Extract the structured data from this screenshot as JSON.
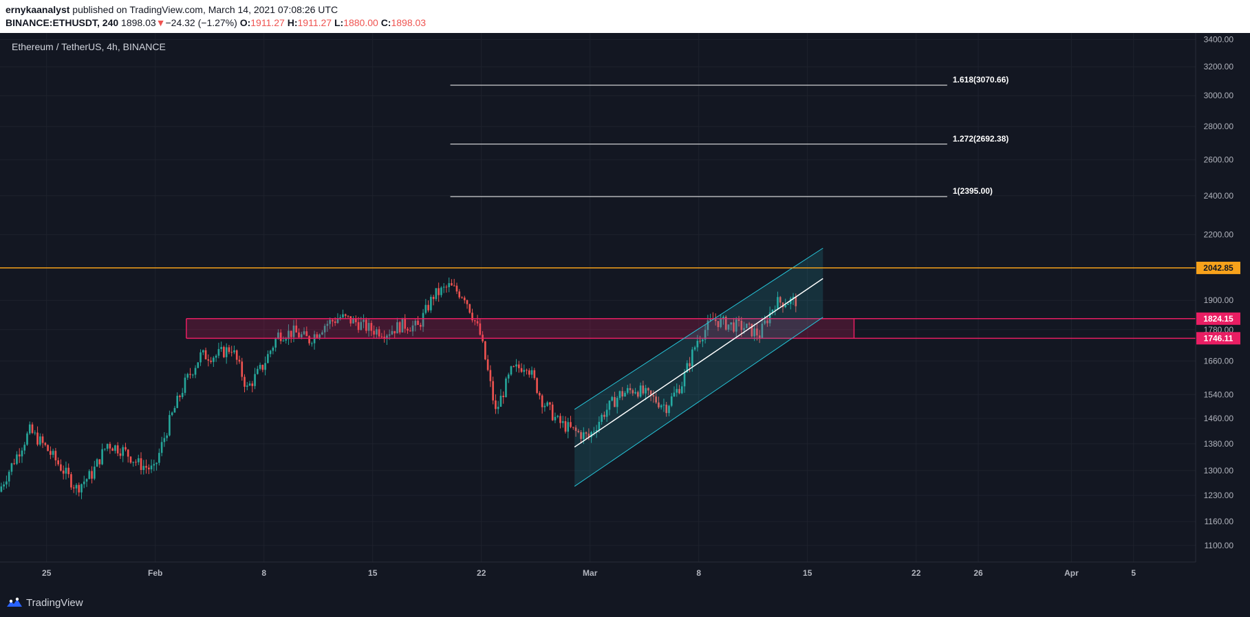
{
  "header": {
    "author": "ernykaanalyst",
    "published_text": "published on TradingView.com, March 14, 2021 07:08:26 UTC",
    "symbol": "BINANCE:ETHUSDT, 240",
    "price": "1898.03",
    "change_arrow": "▼",
    "change": "−24.32 (−1.27%)",
    "o_label": "O:",
    "o_value": "1911.27",
    "h_label": "H:",
    "h_value": "1911.27",
    "l_label": "L:",
    "l_value": "1880.00",
    "c_label": "C:",
    "c_value": "1898.03"
  },
  "footer": {
    "brand": "TradingView",
    "brand_icon": "tradingview-logo-icon"
  },
  "colors": {
    "background": "#131722",
    "grid": "#1e222d",
    "axis_text": "#b2b5be",
    "up": "#26a69a",
    "down": "#ef5350",
    "resistance_line": "#f7a21b",
    "zone": "#e91e63",
    "channel": "#26c6da",
    "fib_line": "#ffffff"
  },
  "chart_data": {
    "type": "candlestick",
    "title": "Ethereum / TetherUS, 4h, BINANCE",
    "y_scale": "log",
    "ylim": [
      1060,
      3450
    ],
    "xlim": [
      "2021-01-22",
      "2021-04-09"
    ],
    "y_ticks": [
      1100,
      1160,
      1230,
      1300,
      1380,
      1460,
      1540,
      1660,
      1780,
      1900,
      2200,
      2400,
      2600,
      2800,
      3000,
      3200,
      3400
    ],
    "x_ticks": [
      {
        "date": "2021-01-25",
        "label": "25"
      },
      {
        "date": "2021-02-01",
        "label": "Feb"
      },
      {
        "date": "2021-02-08",
        "label": "8"
      },
      {
        "date": "2021-02-15",
        "label": "15"
      },
      {
        "date": "2021-02-22",
        "label": "22"
      },
      {
        "date": "2021-03-01",
        "label": "Mar"
      },
      {
        "date": "2021-03-08",
        "label": "8"
      },
      {
        "date": "2021-03-15",
        "label": "15"
      },
      {
        "date": "2021-03-22",
        "label": "22"
      },
      {
        "date": "2021-03-26",
        "label": "26"
      },
      {
        "date": "2021-04-01",
        "label": "Apr"
      },
      {
        "date": "2021-04-05",
        "label": "5"
      }
    ],
    "price_path": [
      {
        "date": "2021-01-22",
        "price": 1240
      },
      {
        "date": "2021-01-23",
        "price": 1330
      },
      {
        "date": "2021-01-24",
        "price": 1420
      },
      {
        "date": "2021-01-25",
        "price": 1370
      },
      {
        "date": "2021-01-26",
        "price": 1310
      },
      {
        "date": "2021-01-27",
        "price": 1250
      },
      {
        "date": "2021-01-28",
        "price": 1290
      },
      {
        "date": "2021-01-29",
        "price": 1380
      },
      {
        "date": "2021-01-30",
        "price": 1360
      },
      {
        "date": "2021-01-31",
        "price": 1320
      },
      {
        "date": "2021-02-01",
        "price": 1300
      },
      {
        "date": "2021-02-02",
        "price": 1450
      },
      {
        "date": "2021-02-03",
        "price": 1580
      },
      {
        "date": "2021-02-04",
        "price": 1680
      },
      {
        "date": "2021-02-05",
        "price": 1680
      },
      {
        "date": "2021-02-06",
        "price": 1710
      },
      {
        "date": "2021-02-07",
        "price": 1560
      },
      {
        "date": "2021-02-08",
        "price": 1640
      },
      {
        "date": "2021-02-09",
        "price": 1760
      },
      {
        "date": "2021-02-10",
        "price": 1770
      },
      {
        "date": "2021-02-11",
        "price": 1740
      },
      {
        "date": "2021-02-12",
        "price": 1800
      },
      {
        "date": "2021-02-13",
        "price": 1830
      },
      {
        "date": "2021-02-14",
        "price": 1810
      },
      {
        "date": "2021-02-15",
        "price": 1780
      },
      {
        "date": "2021-02-16",
        "price": 1770
      },
      {
        "date": "2021-02-17",
        "price": 1800
      },
      {
        "date": "2021-02-18",
        "price": 1790
      },
      {
        "date": "2021-02-19",
        "price": 1920
      },
      {
        "date": "2021-02-20",
        "price": 1960
      },
      {
        "date": "2021-02-21",
        "price": 1920
      },
      {
        "date": "2021-02-22",
        "price": 1760
      },
      {
        "date": "2021-02-23",
        "price": 1480
      },
      {
        "date": "2021-02-24",
        "price": 1620
      },
      {
        "date": "2021-02-25",
        "price": 1650
      },
      {
        "date": "2021-02-26",
        "price": 1520
      },
      {
        "date": "2021-02-27",
        "price": 1450
      },
      {
        "date": "2021-02-28",
        "price": 1420
      },
      {
        "date": "2021-03-01",
        "price": 1400
      },
      {
        "date": "2021-03-02",
        "price": 1480
      },
      {
        "date": "2021-03-03",
        "price": 1540
      },
      {
        "date": "2021-03-04",
        "price": 1560
      },
      {
        "date": "2021-03-05",
        "price": 1530
      },
      {
        "date": "2021-03-06",
        "price": 1500
      },
      {
        "date": "2021-03-07",
        "price": 1580
      },
      {
        "date": "2021-03-08",
        "price": 1740
      },
      {
        "date": "2021-03-09",
        "price": 1820
      },
      {
        "date": "2021-03-10",
        "price": 1800
      },
      {
        "date": "2021-03-11",
        "price": 1790
      },
      {
        "date": "2021-03-12",
        "price": 1760
      },
      {
        "date": "2021-03-13",
        "price": 1890
      },
      {
        "date": "2021-03-14",
        "price": 1898.03
      }
    ],
    "fib_levels": [
      {
        "label": "1.618(3070.66)",
        "value": 3070.66
      },
      {
        "label": "1.272(2692.38)",
        "value": 2692.38
      },
      {
        "label": "1(2395.00)",
        "value": 2395.0
      }
    ],
    "fib_range": [
      "2021-02-20",
      "2021-03-24"
    ],
    "horizontal_line": {
      "value": 2042.85,
      "label": "2042.85"
    },
    "zone": {
      "top": 1824.15,
      "bottom": 1746.11,
      "top_label": "1824.15",
      "bottom_label": "1746.11",
      "start": "2021-02-03",
      "end": "2021-03-18"
    },
    "channel": {
      "start": "2021-02-28",
      "end": "2021-03-16",
      "mid_start": 1370,
      "mid_end": 1995,
      "upper_start": 1490,
      "upper_end": 2135,
      "lower_start": 1255,
      "lower_end": 1830
    }
  }
}
